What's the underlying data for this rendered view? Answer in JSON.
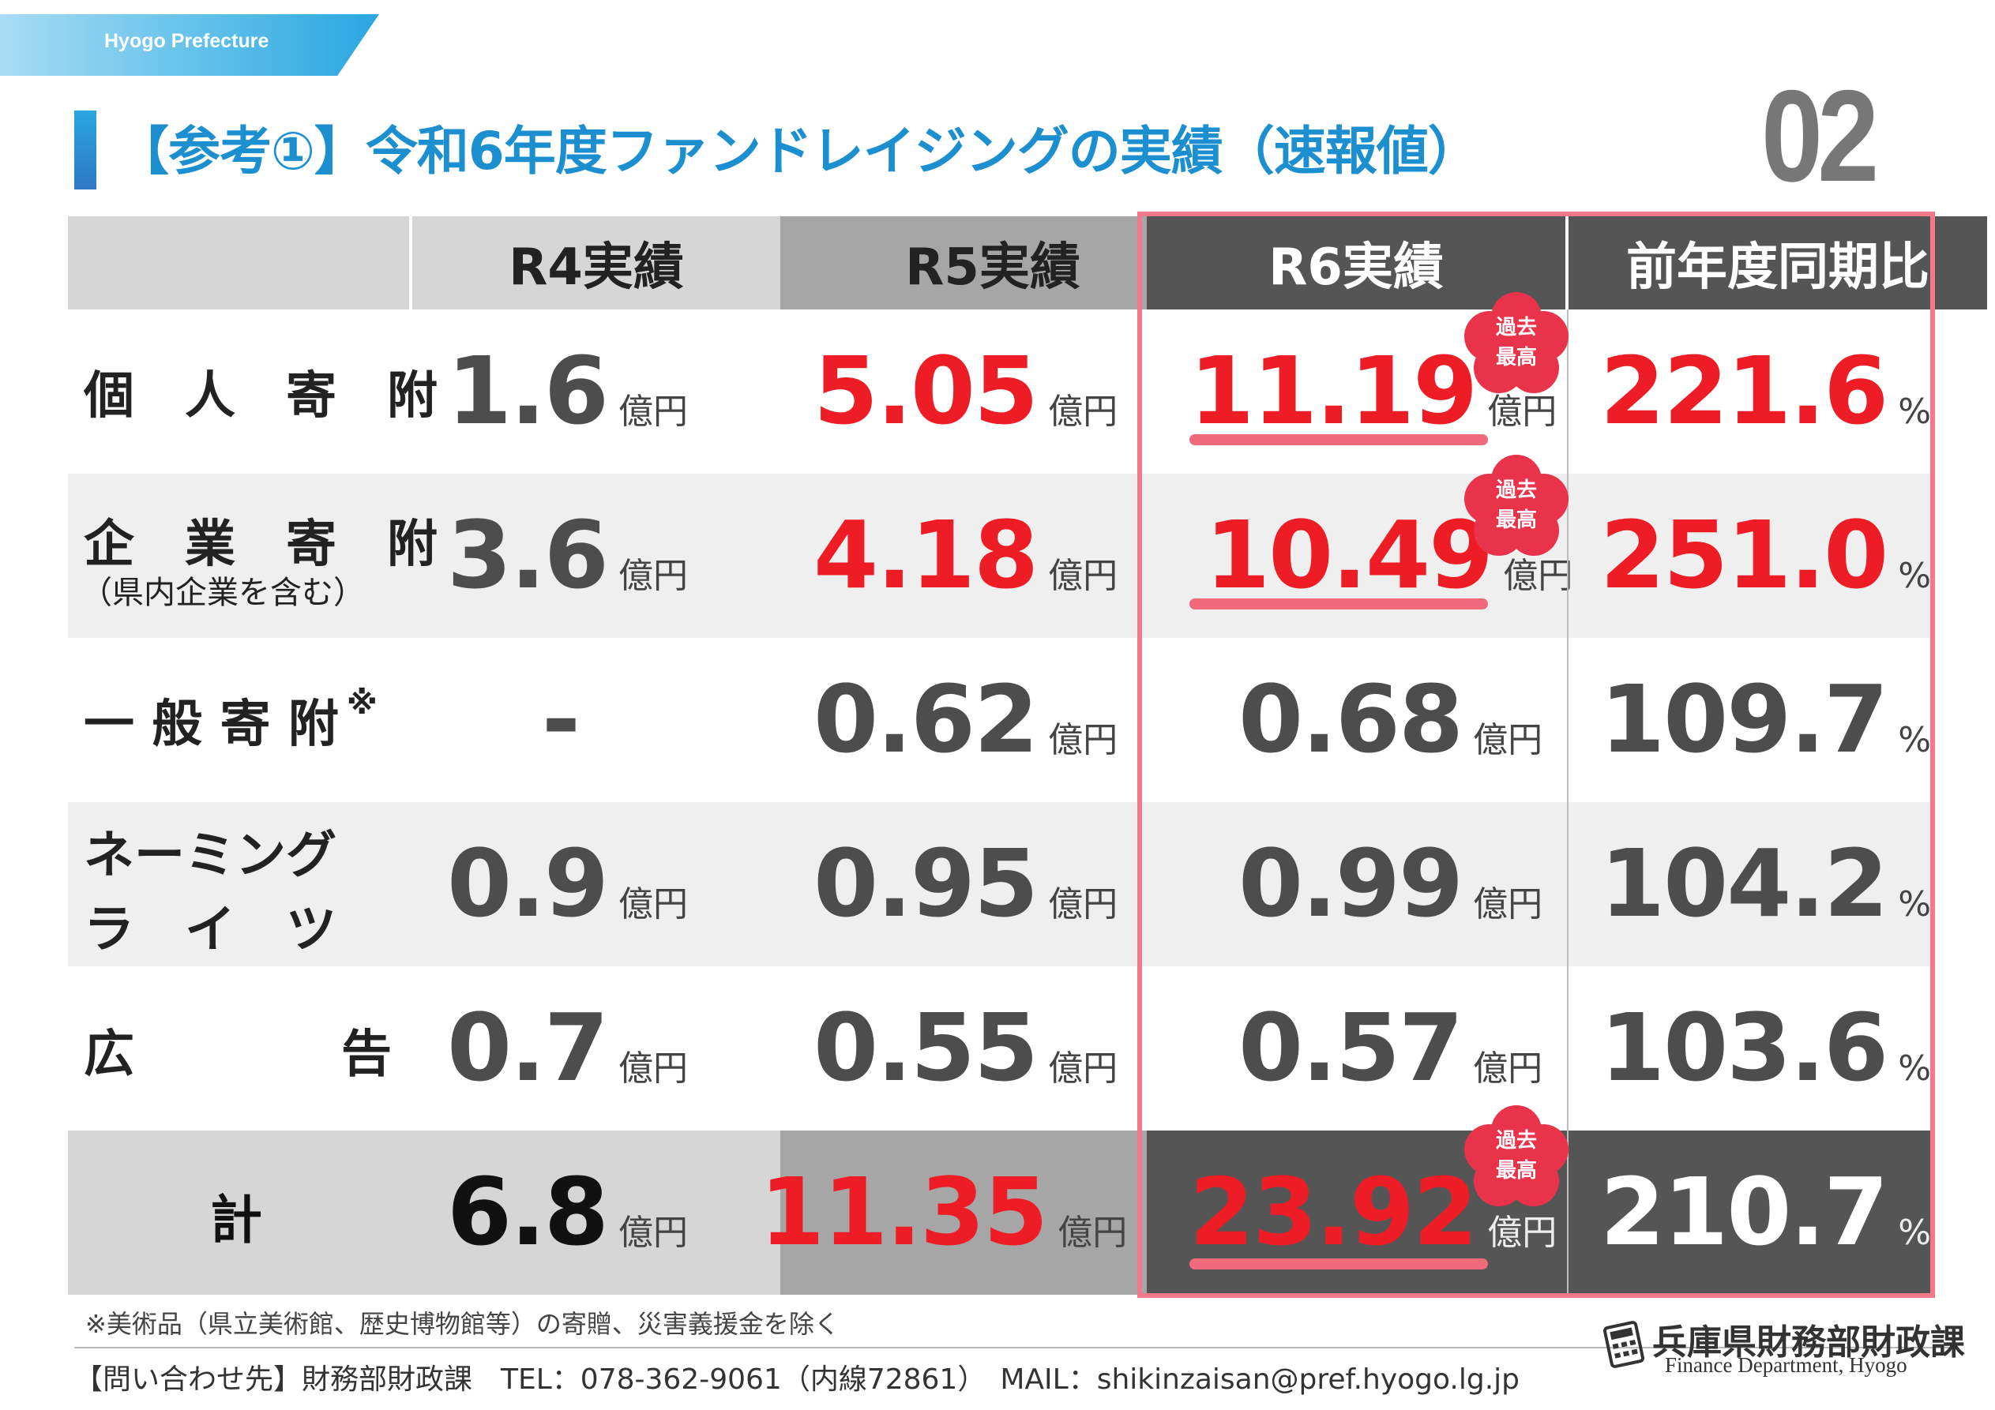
{
  "header": {
    "banner_label": "Hyogo Prefecture",
    "title": "【参考①】令和6年度ファンドレイジングの実績（速報値）",
    "page_number": "02"
  },
  "table": {
    "headers": [
      "",
      "R4実績",
      "R5実績",
      "R6実績",
      "前年度同期比"
    ],
    "unit_oku": "億円",
    "unit_pct": "%",
    "badge_text_1": "過去",
    "badge_text_2": "最高",
    "rows": [
      {
        "label": "個　人　寄　附",
        "sublabel": "",
        "r4": "1.6",
        "r5": "5.05",
        "r6": "11.19",
        "ratio": "221.6"
      },
      {
        "label": "企　業　寄　附",
        "sublabel": "（県内企業を含む）",
        "r4": "3.6",
        "r5": "4.18",
        "r6": "10.49",
        "ratio": "251.0"
      },
      {
        "label": "一 般 寄 附",
        "sublabel": "",
        "note_mark": "※",
        "r4": "-",
        "r5": "0.62",
        "r6": "0.68",
        "ratio": "109.7"
      },
      {
        "label": "ネーミング",
        "label2": "ラ　イ　ツ",
        "r4": "0.9",
        "r5": "0.95",
        "r6": "0.99",
        "ratio": "104.2"
      },
      {
        "label": "広",
        "label_right": "告",
        "r4": "0.7",
        "r5": "0.55",
        "r6": "0.57",
        "ratio": "103.6"
      }
    ],
    "total": {
      "label": "計",
      "r4": "6.8",
      "r5": "11.35",
      "r6": "23.92",
      "ratio": "210.7"
    }
  },
  "colors": {
    "accent_red": "#ee1c24",
    "frame_pink": "#f1798a",
    "title_blue": "#1c8fd0",
    "dark_header": "#555555"
  },
  "footer": {
    "footnote": "※美術品（県立美術館、歴史博物館等）の寄贈、災害義援金を除く",
    "contact": "【問い合わせ先】財務部財政課　TEL：078-362-9061（内線72861）　MAIL：shikinzaisan@pref.hyogo.lg.jp",
    "logo_jp": "兵庫県財務部財政課",
    "logo_en": "Finance Department, Hyogo"
  }
}
